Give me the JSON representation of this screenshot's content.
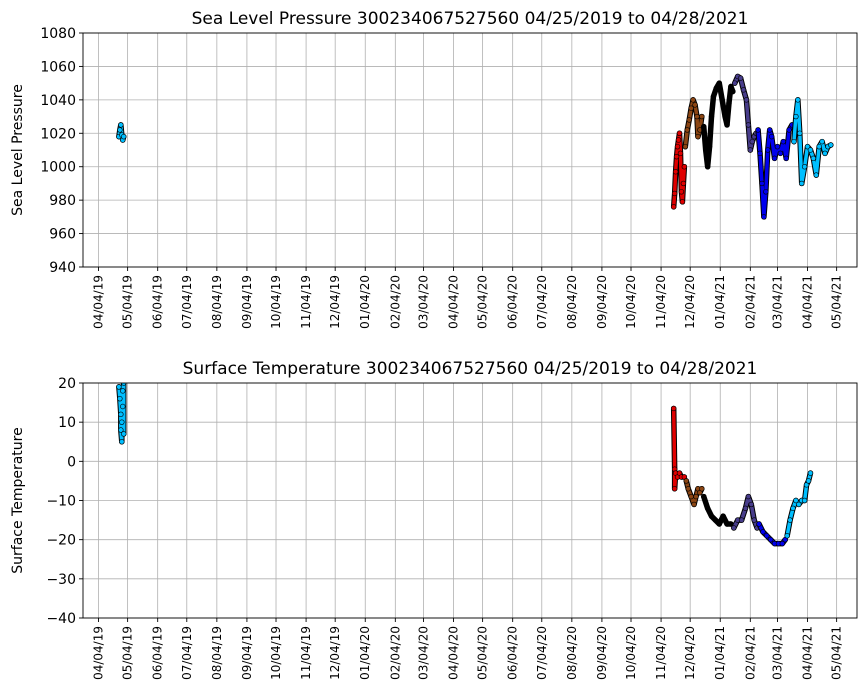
{
  "chart_data": [
    {
      "type": "scatter",
      "title": "Sea Level Pressure 300234067527560  04/25/2019 to 04/28/2021",
      "xlabel": "",
      "ylabel": "Sea Level Pressure",
      "xlim": [
        "2019-03-19",
        "2021-05-25"
      ],
      "ylim": [
        940,
        1080
      ],
      "yticks": [
        940,
        960,
        980,
        1000,
        1020,
        1040,
        1060,
        1080
      ],
      "xticks": [
        "04/04/19",
        "05/04/19",
        "06/04/19",
        "07/04/19",
        "08/04/19",
        "09/04/19",
        "10/04/19",
        "11/04/19",
        "12/04/19",
        "01/04/20",
        "02/04/20",
        "03/04/20",
        "04/04/20",
        "05/04/20",
        "06/04/20",
        "07/04/20",
        "08/04/20",
        "09/04/20",
        "10/04/20",
        "11/04/20",
        "12/04/20",
        "01/04/21",
        "02/04/21",
        "03/04/21",
        "04/04/21",
        "05/04/21"
      ],
      "grid": true,
      "series": [
        {
          "color": "#00bfff",
          "points": [
            [
              "2019-04-25",
              1018
            ],
            [
              "2019-04-26",
              1022
            ],
            [
              "2019-04-27",
              1025
            ],
            [
              "2019-04-28",
              1019
            ],
            [
              "2019-04-29",
              1016
            ],
            [
              "2019-04-30",
              1018
            ]
          ]
        },
        {
          "color": "#e00000",
          "points": [
            [
              "2020-11-17",
              976
            ],
            [
              "2020-11-18",
              984
            ],
            [
              "2020-11-19",
              997
            ],
            [
              "2020-11-20",
              1006
            ],
            [
              "2020-11-21",
              1012
            ],
            [
              "2020-11-22",
              1016
            ],
            [
              "2020-11-23",
              1020
            ],
            [
              "2020-11-24",
              1008
            ],
            [
              "2020-11-25",
              985
            ],
            [
              "2020-11-26",
              979
            ],
            [
              "2020-11-27",
              990
            ],
            [
              "2020-11-28",
              1000
            ]
          ]
        },
        {
          "color": "#8b4513",
          "points": [
            [
              "2020-11-29",
              1012
            ],
            [
              "2020-12-01",
              1022
            ],
            [
              "2020-12-03",
              1028
            ],
            [
              "2020-12-05",
              1035
            ],
            [
              "2020-12-07",
              1040
            ],
            [
              "2020-12-09",
              1037
            ],
            [
              "2020-12-11",
              1030
            ],
            [
              "2020-12-12",
              1018
            ],
            [
              "2020-12-14",
              1022
            ],
            [
              "2020-12-16",
              1030
            ]
          ]
        },
        {
          "color": "#000000",
          "points": [
            [
              "2020-12-18",
              1024
            ],
            [
              "2020-12-20",
              1010
            ],
            [
              "2020-12-22",
              1000
            ],
            [
              "2020-12-24",
              1012
            ],
            [
              "2020-12-26",
              1030
            ],
            [
              "2020-12-28",
              1042
            ],
            [
              "2020-12-31",
              1047
            ],
            [
              "2021-01-03",
              1050
            ],
            [
              "2021-01-06",
              1040
            ],
            [
              "2021-01-09",
              1030
            ],
            [
              "2021-01-11",
              1025
            ],
            [
              "2021-01-13",
              1038
            ],
            [
              "2021-01-15",
              1048
            ],
            [
              "2021-01-17",
              1045
            ]
          ]
        },
        {
          "color": "#483d8b",
          "points": [
            [
              "2021-01-19",
              1050
            ],
            [
              "2021-01-22",
              1054
            ],
            [
              "2021-01-25",
              1053
            ],
            [
              "2021-01-28",
              1046
            ],
            [
              "2021-01-31",
              1040
            ],
            [
              "2021-02-02",
              1025
            ],
            [
              "2021-02-04",
              1010
            ],
            [
              "2021-02-06",
              1015
            ],
            [
              "2021-02-08",
              1018
            ],
            [
              "2021-02-10",
              1020
            ]
          ]
        },
        {
          "color": "#0000ee",
          "points": [
            [
              "2021-02-12",
              1022
            ],
            [
              "2021-02-14",
              1008
            ],
            [
              "2021-02-16",
              990
            ],
            [
              "2021-02-18",
              970
            ],
            [
              "2021-02-20",
              985
            ],
            [
              "2021-02-22",
              1010
            ],
            [
              "2021-02-24",
              1022
            ],
            [
              "2021-02-26",
              1018
            ],
            [
              "2021-03-01",
              1005
            ],
            [
              "2021-03-04",
              1012
            ],
            [
              "2021-03-07",
              1008
            ],
            [
              "2021-03-10",
              1015
            ],
            [
              "2021-03-13",
              1005
            ],
            [
              "2021-03-16",
              1022
            ],
            [
              "2021-03-19",
              1025
            ]
          ]
        },
        {
          "color": "#00bfff",
          "points": [
            [
              "2021-03-21",
              1015
            ],
            [
              "2021-03-23",
              1030
            ],
            [
              "2021-03-25",
              1040
            ],
            [
              "2021-03-27",
              1020
            ],
            [
              "2021-03-29",
              990
            ],
            [
              "2021-04-01",
              1000
            ],
            [
              "2021-04-04",
              1012
            ],
            [
              "2021-04-07",
              1010
            ],
            [
              "2021-04-10",
              1005
            ],
            [
              "2021-04-13",
              995
            ],
            [
              "2021-04-16",
              1012
            ],
            [
              "2021-04-19",
              1015
            ],
            [
              "2021-04-22",
              1008
            ],
            [
              "2021-04-25",
              1012
            ],
            [
              "2021-04-28",
              1013
            ]
          ]
        }
      ]
    },
    {
      "type": "scatter",
      "title": "Surface Temperature 300234067527560  04/25/2019 to 04/28/2021",
      "xlabel": "",
      "ylabel": "Surface Temperature",
      "xlim": [
        "2019-03-19",
        "2021-05-25"
      ],
      "ylim": [
        -40,
        20
      ],
      "yticks": [
        -40,
        -30,
        -20,
        -10,
        0,
        10,
        20
      ],
      "xticks": [
        "04/04/19",
        "05/04/19",
        "06/04/19",
        "07/04/19",
        "08/04/19",
        "09/04/19",
        "10/04/19",
        "11/04/19",
        "12/04/19",
        "01/04/20",
        "02/04/20",
        "03/04/20",
        "04/04/20",
        "05/04/20",
        "06/04/20",
        "07/04/20",
        "08/04/20",
        "09/04/20",
        "10/04/20",
        "11/04/20",
        "12/04/20",
        "01/04/21",
        "02/04/21",
        "03/04/21",
        "04/04/21",
        "05/04/21"
      ],
      "grid": true,
      "series": [
        {
          "color": "#00bfff",
          "points": [
            [
              "2019-04-25",
              19
            ],
            [
              "2019-04-26",
              16
            ],
            [
              "2019-04-27",
              12
            ],
            [
              "2019-04-27",
              8
            ],
            [
              "2019-04-28",
              5
            ],
            [
              "2019-04-28",
              10
            ],
            [
              "2019-04-29",
              14
            ],
            [
              "2019-04-29",
              18
            ],
            [
              "2019-04-30",
              20
            ],
            [
              "2019-04-30",
              7
            ]
          ]
        },
        {
          "color": "#e00000",
          "points": [
            [
              "2020-11-17",
              13.5
            ],
            [
              "2020-11-18",
              -2
            ],
            [
              "2020-11-18",
              -7
            ],
            [
              "2020-11-19",
              -3
            ],
            [
              "2020-11-21",
              -4
            ],
            [
              "2020-11-23",
              -3
            ],
            [
              "2020-11-25",
              -4
            ],
            [
              "2020-11-28",
              -4
            ]
          ]
        },
        {
          "color": "#8b4513",
          "points": [
            [
              "2020-11-30",
              -5
            ],
            [
              "2020-12-02",
              -7
            ],
            [
              "2020-12-05",
              -9
            ],
            [
              "2020-12-08",
              -11
            ],
            [
              "2020-12-10",
              -9
            ],
            [
              "2020-12-12",
              -7
            ],
            [
              "2020-12-14",
              -8
            ],
            [
              "2020-12-16",
              -7
            ]
          ]
        },
        {
          "color": "#000000",
          "points": [
            [
              "2020-12-18",
              -9
            ],
            [
              "2020-12-22",
              -12
            ],
            [
              "2020-12-26",
              -14
            ],
            [
              "2020-12-30",
              -15
            ],
            [
              "2021-01-03",
              -16
            ],
            [
              "2021-01-07",
              -14
            ],
            [
              "2021-01-11",
              -16
            ],
            [
              "2021-01-15",
              -16
            ]
          ]
        },
        {
          "color": "#483d8b",
          "points": [
            [
              "2021-01-18",
              -17
            ],
            [
              "2021-01-22",
              -15
            ],
            [
              "2021-01-26",
              -15
            ],
            [
              "2021-01-30",
              -12
            ],
            [
              "2021-02-02",
              -9
            ],
            [
              "2021-02-05",
              -11
            ],
            [
              "2021-02-08",
              -15
            ],
            [
              "2021-02-11",
              -17
            ]
          ]
        },
        {
          "color": "#0000ee",
          "points": [
            [
              "2021-02-13",
              -16
            ],
            [
              "2021-02-17",
              -18
            ],
            [
              "2021-02-21",
              -19
            ],
            [
              "2021-02-25",
              -20
            ],
            [
              "2021-03-01",
              -21
            ],
            [
              "2021-03-05",
              -21
            ],
            [
              "2021-03-09",
              -21
            ],
            [
              "2021-03-12",
              -20
            ]
          ]
        },
        {
          "color": "#00bfff",
          "points": [
            [
              "2021-03-14",
              -19
            ],
            [
              "2021-03-17",
              -15
            ],
            [
              "2021-03-20",
              -12
            ],
            [
              "2021-03-23",
              -10
            ],
            [
              "2021-03-26",
              -11
            ],
            [
              "2021-03-29",
              -10
            ],
            [
              "2021-04-01",
              -10
            ],
            [
              "2021-04-03",
              -6
            ],
            [
              "2021-04-05",
              -5
            ],
            [
              "2021-04-07",
              -3
            ]
          ]
        }
      ]
    }
  ]
}
